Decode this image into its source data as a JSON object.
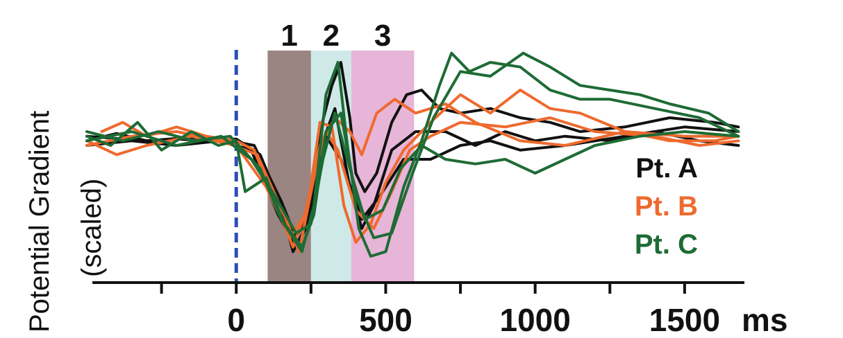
{
  "chart_data": {
    "type": "line",
    "title": "",
    "ylabel": "Potential Gradient",
    "ylabel_sub": "(scaled)",
    "xlabel_unit": "ms",
    "x_ticks": [
      -250,
      0,
      250,
      500,
      750,
      1000,
      1250,
      1500
    ],
    "x_tick_labels": [
      {
        "value": 0,
        "label": "0"
      },
      {
        "value": 500,
        "label": "500"
      },
      {
        "value": 1000,
        "label": "1000"
      },
      {
        "value": 1500,
        "label": "1500"
      }
    ],
    "xlim": [
      -500,
      1700
    ],
    "ylim": [
      -1.4,
      1.0
    ],
    "stimulus_onset_ms": 0,
    "windows": [
      {
        "label": "1",
        "start": 105,
        "end": 250,
        "color": "#9a8582"
      },
      {
        "label": "2",
        "start": 250,
        "end": 385,
        "color": "#cfe9e8"
      },
      {
        "label": "3",
        "start": 385,
        "end": 595,
        "color": "#e7b5d7"
      }
    ],
    "legend": [
      {
        "label": "Pt. A",
        "color": "#111111"
      },
      {
        "label": "Pt. B",
        "color": "#ee6a2e"
      },
      {
        "label": "Pt. C",
        "color": "#1e6b35"
      }
    ],
    "series": [
      {
        "group": "Pt. A",
        "color": "#111111",
        "x": [
          -500,
          -400,
          -300,
          -200,
          -100,
          0,
          80,
          150,
          190,
          230,
          280,
          320,
          350,
          380,
          400,
          430,
          470,
          520,
          570,
          620,
          680,
          750,
          850,
          950,
          1050,
          1150,
          1300,
          1450,
          1600,
          1680
        ],
        "y": [
          0.0,
          0.08,
          0.0,
          0.02,
          0.0,
          0.02,
          -0.15,
          -0.7,
          -1.2,
          -0.95,
          0.1,
          0.6,
          0.85,
          0.25,
          -0.35,
          -0.55,
          -0.35,
          0.2,
          0.5,
          0.55,
          0.35,
          0.3,
          0.35,
          0.25,
          0.2,
          0.1,
          0.15,
          0.25,
          0.2,
          0.15
        ]
      },
      {
        "group": "Pt. A",
        "color": "#111111",
        "x": [
          -500,
          -350,
          -200,
          -50,
          50,
          140,
          200,
          240,
          290,
          330,
          380,
          420,
          460,
          520,
          600,
          700,
          800,
          900,
          1000,
          1100,
          1250,
          1400,
          1550,
          1680
        ],
        "y": [
          -0.05,
          0.0,
          -0.05,
          0.0,
          -0.1,
          -0.8,
          -1.15,
          -0.9,
          0.0,
          0.35,
          -0.5,
          -0.95,
          -0.7,
          -0.1,
          0.1,
          0.1,
          -0.05,
          0.1,
          0.0,
          0.05,
          0.0,
          0.1,
          0.0,
          -0.05
        ]
      },
      {
        "group": "Pt. A",
        "color": "#111111",
        "x": [
          -500,
          -300,
          -100,
          60,
          150,
          200,
          250,
          300,
          350,
          420,
          480,
          560,
          650,
          750,
          850,
          950,
          1100,
          1300,
          1500,
          1680
        ],
        "y": [
          0.05,
          0.0,
          0.05,
          -0.05,
          -0.65,
          -1.05,
          -0.7,
          0.05,
          -0.2,
          -0.85,
          -0.6,
          -0.2,
          -0.2,
          -0.05,
          0.0,
          -0.1,
          -0.05,
          0.05,
          0.15,
          0.1
        ]
      },
      {
        "group": "Pt. B",
        "color": "#ee6a2e",
        "x": [
          -450,
          -380,
          -300,
          -200,
          -100,
          0,
          60,
          130,
          190,
          240,
          280,
          320,
          360,
          400,
          450,
          500,
          560,
          650,
          750,
          850,
          950,
          1050,
          1150,
          1300,
          1450,
          1600,
          1680
        ],
        "y": [
          0.1,
          0.2,
          0.05,
          0.15,
          0.05,
          0.0,
          -0.1,
          -0.65,
          -1.15,
          -0.7,
          0.2,
          0.15,
          -0.7,
          -1.1,
          -0.9,
          -0.45,
          -0.1,
          0.2,
          0.5,
          0.3,
          0.55,
          0.35,
          0.3,
          0.1,
          0.0,
          0.0,
          0.05
        ]
      },
      {
        "group": "Pt. B",
        "color": "#ee6a2e",
        "x": [
          -500,
          -350,
          -200,
          -50,
          70,
          160,
          210,
          260,
          300,
          340,
          400,
          460,
          520,
          580,
          650,
          750,
          900,
          1050,
          1200,
          1400,
          1550,
          1680
        ],
        "y": [
          -0.05,
          0.05,
          0.1,
          0.0,
          -0.15,
          -0.8,
          -1.2,
          -0.4,
          0.1,
          -0.1,
          -0.75,
          -0.95,
          -0.55,
          -0.1,
          0.05,
          0.2,
          0.15,
          0.25,
          0.1,
          0.05,
          -0.05,
          0.0
        ]
      },
      {
        "group": "Pt. B",
        "color": "#ee6a2e",
        "x": [
          -500,
          -400,
          -300,
          -150,
          0,
          100,
          180,
          230,
          280,
          330,
          380,
          420,
          470,
          530,
          600,
          700,
          800,
          950,
          1100,
          1300,
          1500,
          1680
        ],
        "y": [
          0.0,
          -0.15,
          -0.05,
          0.05,
          -0.05,
          -0.5,
          -1.05,
          -0.8,
          -0.05,
          0.25,
          0.1,
          -0.15,
          0.3,
          0.45,
          0.3,
          0.4,
          0.2,
          0.0,
          -0.05,
          0.1,
          0.05,
          0.05
        ]
      },
      {
        "group": "Pt. C",
        "color": "#1e6b35",
        "x": [
          -500,
          -420,
          -330,
          -250,
          -150,
          -60,
          0,
          30,
          100,
          160,
          220,
          260,
          300,
          340,
          370,
          410,
          450,
          500,
          560,
          620,
          680,
          720,
          780,
          850,
          950,
          1050,
          1150,
          1250,
          1400,
          1550,
          1680
        ],
        "y": [
          0.05,
          -0.05,
          0.2,
          -0.1,
          0.1,
          -0.05,
          0.0,
          -0.55,
          -0.4,
          -0.9,
          -1.2,
          -0.7,
          0.5,
          0.85,
          0.0,
          -0.95,
          -1.25,
          -1.2,
          -0.5,
          0.0,
          0.6,
          0.95,
          0.75,
          0.85,
          0.8,
          0.55,
          0.45,
          0.45,
          0.35,
          0.25,
          0.05
        ]
      },
      {
        "group": "Pt. C",
        "color": "#1e6b35",
        "x": [
          -500,
          -380,
          -260,
          -140,
          -20,
          80,
          150,
          220,
          260,
          300,
          350,
          400,
          460,
          520,
          590,
          660,
          750,
          850,
          960,
          1050,
          1150,
          1250,
          1350,
          1450,
          1580,
          1680
        ],
        "y": [
          0.1,
          0.0,
          0.1,
          0.0,
          0.05,
          -0.3,
          -0.85,
          -1.15,
          -0.8,
          0.1,
          0.3,
          -0.6,
          -1.05,
          -1.0,
          -0.35,
          0.25,
          0.75,
          0.7,
          0.95,
          0.8,
          0.6,
          0.55,
          0.5,
          0.4,
          0.3,
          0.1
        ]
      },
      {
        "group": "Pt. C",
        "color": "#1e6b35",
        "x": [
          -500,
          -350,
          -200,
          -50,
          50,
          130,
          200,
          250,
          290,
          330,
          380,
          430,
          490,
          550,
          620,
          700,
          800,
          900,
          1000,
          1100,
          1200,
          1350,
          1500,
          1680
        ],
        "y": [
          0.0,
          0.1,
          -0.05,
          0.05,
          -0.2,
          -0.6,
          -1.0,
          -0.9,
          -0.2,
          0.3,
          -0.3,
          -0.85,
          -0.75,
          -0.3,
          -0.05,
          -0.2,
          -0.25,
          -0.2,
          -0.35,
          -0.2,
          -0.05,
          0.05,
          0.1,
          0.05
        ]
      }
    ]
  }
}
